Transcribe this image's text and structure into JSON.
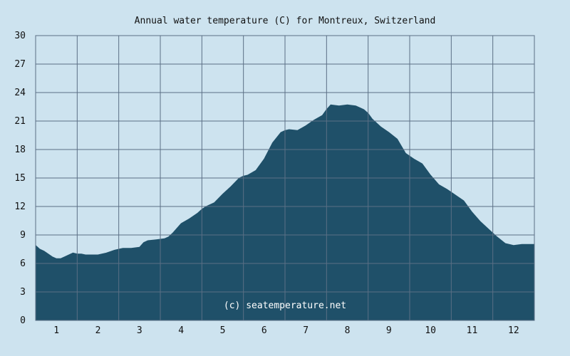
{
  "chart_data": {
    "type": "area",
    "title": "Annual water temperature (C) for Montreux, Switzerland",
    "watermark": "(c) seatemperature.net",
    "xlabel": "",
    "ylabel": "",
    "x_ticks": [
      "1",
      "2",
      "3",
      "4",
      "5",
      "6",
      "7",
      "8",
      "9",
      "10",
      "11",
      "12"
    ],
    "y_ticks": [
      "0",
      "3",
      "6",
      "9",
      "12",
      "15",
      "18",
      "21",
      "24",
      "27",
      "30"
    ],
    "xlim": [
      0.5,
      12.5
    ],
    "ylim": [
      0,
      30
    ],
    "grid": true,
    "legend": "none",
    "colors": {
      "background": "#cde3ef",
      "plot_background": "#cde3ef",
      "area_fill": "#1f5069",
      "grid": "#5b6f85"
    },
    "series": [
      {
        "x": [
          0.5,
          0.6,
          0.7,
          0.8,
          0.9,
          1.0,
          1.1,
          1.2,
          1.3,
          1.4,
          1.5,
          1.6,
          1.7,
          1.8,
          1.9,
          2.0,
          2.2,
          2.4,
          2.5,
          2.6,
          2.8,
          3.0,
          3.1,
          3.2,
          3.4,
          3.6,
          3.7,
          3.8,
          3.9,
          4.0,
          4.2,
          4.4,
          4.5,
          4.6,
          4.8,
          5.0,
          5.2,
          5.4,
          5.5,
          5.6,
          5.8,
          6.0,
          6.2,
          6.4,
          6.5,
          6.6,
          6.8,
          7.0,
          7.2,
          7.4,
          7.5,
          7.6,
          7.8,
          8.0,
          8.2,
          8.3,
          8.4,
          8.5,
          8.6,
          8.8,
          9.0,
          9.2,
          9.4,
          9.6,
          9.8,
          10.0,
          10.2,
          10.4,
          10.6,
          10.8,
          11.0,
          11.2,
          11.4,
          11.6,
          11.8,
          12.0,
          12.2,
          12.4,
          12.5
        ],
        "values": [
          7.9,
          7.5,
          7.3,
          7.0,
          6.7,
          6.5,
          6.5,
          6.7,
          6.9,
          7.1,
          7.0,
          7.0,
          6.9,
          6.9,
          6.9,
          6.9,
          7.1,
          7.4,
          7.5,
          7.6,
          7.6,
          7.7,
          8.2,
          8.4,
          8.5,
          8.6,
          8.8,
          9.2,
          9.7,
          10.2,
          10.7,
          11.3,
          11.7,
          12.0,
          12.4,
          13.3,
          14.1,
          15.0,
          15.2,
          15.3,
          15.8,
          17.0,
          18.7,
          19.8,
          20.0,
          20.1,
          20.0,
          20.5,
          21.1,
          21.6,
          22.2,
          22.7,
          22.6,
          22.7,
          22.6,
          22.4,
          22.2,
          21.8,
          21.2,
          20.4,
          19.8,
          19.1,
          17.6,
          17.0,
          16.5,
          15.3,
          14.3,
          13.8,
          13.2,
          12.6,
          11.4,
          10.4,
          9.6,
          8.8,
          8.1,
          7.9,
          8.0,
          8.0,
          8.0
        ]
      }
    ]
  }
}
